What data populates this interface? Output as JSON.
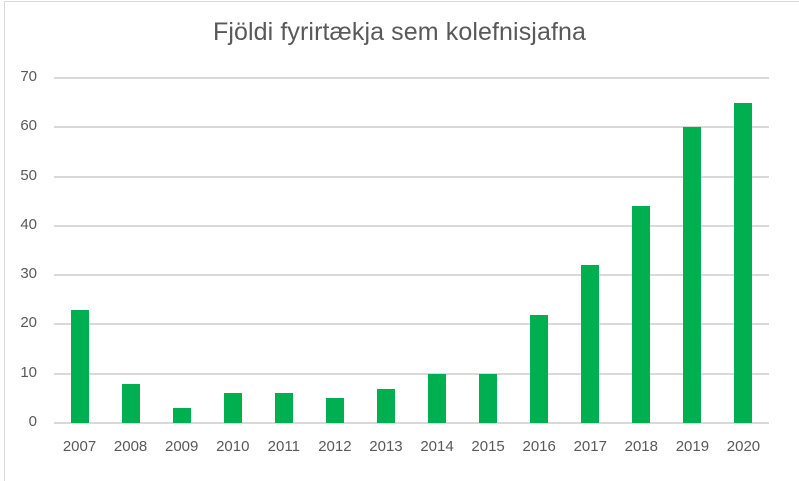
{
  "chart_data": {
    "type": "bar",
    "title": "Fjöldi fyrirtækja sem kolefnisjafna",
    "xlabel": "",
    "ylabel": "",
    "categories": [
      "2007",
      "2008",
      "2009",
      "2010",
      "2011",
      "2012",
      "2013",
      "2014",
      "2015",
      "2016",
      "2017",
      "2018",
      "2019",
      "2020"
    ],
    "values": [
      23,
      8,
      3,
      6,
      6,
      5,
      7,
      10,
      10,
      22,
      32,
      44,
      60,
      65
    ],
    "ylim": [
      0,
      70
    ],
    "yticks": [
      0,
      10,
      20,
      30,
      40,
      50,
      60,
      70
    ],
    "grid": true,
    "legend": null,
    "bar_color": "#00B050"
  }
}
